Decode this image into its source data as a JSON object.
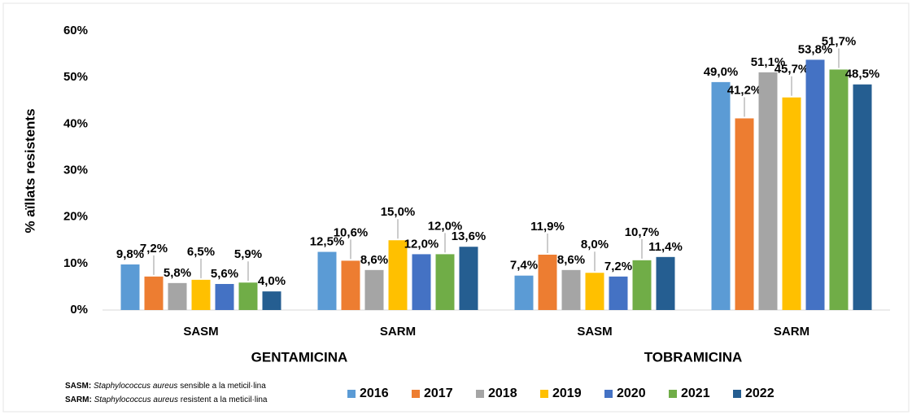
{
  "chart_data": {
    "type": "bar",
    "y_label": "% aïllats resistents",
    "categories": [
      "SASM",
      "SARM",
      "SASM",
      "SARM"
    ],
    "groups": [
      {
        "label": "GENTAMICINA",
        "span": [
          0,
          1
        ]
      },
      {
        "label": "TOBRAMICINA",
        "span": [
          2,
          3
        ]
      }
    ],
    "series": [
      {
        "name": "2016",
        "color": "#5b9bd5",
        "values": [
          9.8,
          12.5,
          7.4,
          49.0
        ],
        "value_labels": [
          "9,8%",
          "12,5%",
          "7,4%",
          "49,0%"
        ]
      },
      {
        "name": "2017",
        "color": "#ed7d31",
        "values": [
          7.2,
          10.6,
          11.9,
          41.2
        ],
        "value_labels": [
          "7,2%",
          "10,6%",
          "11,9%",
          "41,2%"
        ]
      },
      {
        "name": "2018",
        "color": "#a5a5a5",
        "values": [
          5.8,
          8.6,
          8.6,
          51.1
        ],
        "value_labels": [
          "5,8%",
          "8,6%",
          "8,6%",
          "51,1%"
        ]
      },
      {
        "name": "2019",
        "color": "#ffc000",
        "values": [
          6.5,
          15.0,
          8.0,
          45.7
        ],
        "value_labels": [
          "6,5%",
          "15,0%",
          "8,0%",
          "45,7%"
        ]
      },
      {
        "name": "2020",
        "color": "#4472c4",
        "values": [
          5.6,
          12.0,
          7.2,
          53.8
        ],
        "value_labels": [
          "5,6%",
          "12,0%",
          "7,2%",
          "53,8%"
        ]
      },
      {
        "name": "2021",
        "color": "#70ad47",
        "values": [
          5.9,
          12.0,
          10.7,
          51.7
        ],
        "value_labels": [
          "5,9%",
          "12,0%",
          "10,7%",
          "51,7%"
        ]
      },
      {
        "name": "2022",
        "color": "#255e91",
        "values": [
          4.0,
          13.6,
          11.4,
          48.5
        ],
        "value_labels": [
          "4,0%",
          "13,6%",
          "11,4%",
          "48,5%"
        ]
      }
    ],
    "ylim": [
      0,
      60
    ],
    "yticks": [
      {
        "value": 0,
        "label": "0%"
      },
      {
        "value": 10,
        "label": "10%"
      },
      {
        "value": 20,
        "label": "20%"
      },
      {
        "value": 30,
        "label": "30%"
      },
      {
        "value": 40,
        "label": "40%"
      },
      {
        "value": 50,
        "label": "50%"
      },
      {
        "value": 60,
        "label": "60%"
      }
    ],
    "grid": false,
    "legend": "bottom",
    "notes": [
      {
        "abbr": "SASM:",
        "species": "Staphylococcus aureus",
        "text": "sensible a la meticil·lina"
      },
      {
        "abbr": "SARM:",
        "species": "Staphylococcus aureus",
        "text": "resistent a la meticil·lina"
      }
    ]
  }
}
